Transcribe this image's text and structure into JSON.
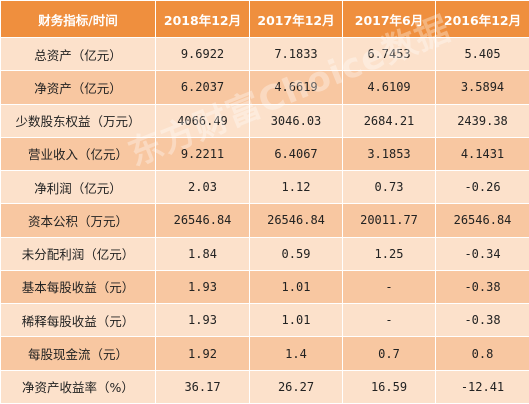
{
  "table": {
    "header": [
      "财务指标/时间",
      "2018年12月",
      "2017年12月",
      "2017年6月",
      "2016年12月"
    ],
    "rows": [
      {
        "label": "总资产（亿元）",
        "values": [
          "9.6922",
          "7.1833",
          "6.7453",
          "5.405"
        ]
      },
      {
        "label": "净资产（亿元）",
        "values": [
          "6.2037",
          "4.6619",
          "4.6109",
          "3.5894"
        ]
      },
      {
        "label": "少数股东权益（万元）",
        "values": [
          "4066.49",
          "3046.03",
          "2684.21",
          "2439.38"
        ]
      },
      {
        "label": "营业收入（亿元）",
        "values": [
          "9.2211",
          "6.4067",
          "3.1853",
          "4.1431"
        ]
      },
      {
        "label": "净利润（亿元）",
        "values": [
          "2.03",
          "1.12",
          "0.73",
          "-0.26"
        ]
      },
      {
        "label": "资本公积（万元）",
        "values": [
          "26546.84",
          "26546.84",
          "20011.77",
          "26546.84"
        ]
      },
      {
        "label": "未分配利润（亿元）",
        "values": [
          "1.84",
          "0.59",
          "1.25",
          "-0.34"
        ]
      },
      {
        "label": "基本每股收益（元）",
        "values": [
          "1.93",
          "1.01",
          "-",
          "-0.38"
        ]
      },
      {
        "label": "稀释每股收益（元）",
        "values": [
          "1.93",
          "1.01",
          "-",
          "-0.38"
        ]
      },
      {
        "label": "每股现金流（元）",
        "values": [
          "1.92",
          "1.4",
          "0.7",
          "0.8"
        ]
      },
      {
        "label": "净资产收益率（%）",
        "values": [
          "36.17",
          "26.27",
          "16.59",
          "-12.41"
        ]
      }
    ]
  },
  "watermark": "东方财富Choice数据",
  "colors": {
    "header_bg": "#ef8f3e",
    "row_light": "#fce1cb",
    "row_dark": "#f8c7a1"
  }
}
